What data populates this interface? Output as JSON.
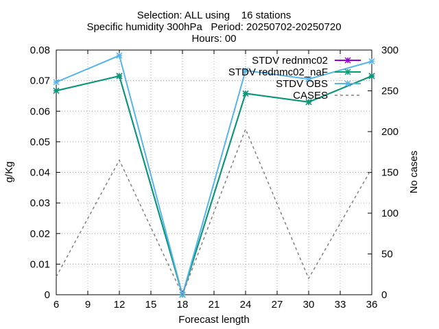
{
  "chart_data": {
    "type": "line",
    "title_lines": [
      "Selection: ALL using    16 stations",
      "Specific humidity 300hPa   Period: 20250702-20250720",
      "Hours: 00"
    ],
    "xlabel": "Forecast length",
    "ylabel": "g/Kg",
    "y2label": "No cases",
    "x": [
      6,
      12,
      18,
      24,
      30,
      36
    ],
    "xticks": [
      "6",
      "9",
      "12",
      "15",
      "18",
      "21",
      "24",
      "27",
      "30",
      "33",
      "36"
    ],
    "xtick_values": [
      6,
      9,
      12,
      15,
      18,
      21,
      24,
      27,
      30,
      33,
      36
    ],
    "xlim": [
      6,
      36
    ],
    "ylim": [
      0,
      0.08
    ],
    "yticks": [
      "0",
      "0.01",
      "0.02",
      "0.03",
      "0.04",
      "0.05",
      "0.06",
      "0.07",
      "0.08"
    ],
    "ytick_values": [
      0,
      0.01,
      0.02,
      0.03,
      0.04,
      0.05,
      0.06,
      0.07,
      0.08
    ],
    "y2lim": [
      0,
      300
    ],
    "y2ticks": [
      "0",
      "50",
      "100",
      "150",
      "200",
      "250",
      "300"
    ],
    "y2tick_values": [
      0,
      50,
      100,
      150,
      200,
      250,
      300
    ],
    "grid": true,
    "legend_position": "top-right",
    "series": [
      {
        "name": "STDV rednmc02",
        "color": "#9400d3",
        "style": "solid-star",
        "axis": "y1",
        "values": [
          0.0667,
          0.0715,
          0.0,
          0.0658,
          0.063,
          0.0715
        ]
      },
      {
        "name": "STDV rednmc02_naF",
        "color": "#009e73",
        "style": "solid-star",
        "axis": "y1",
        "values": [
          0.0667,
          0.0715,
          0.0,
          0.0658,
          0.063,
          0.0715
        ]
      },
      {
        "name": "STDV OBS",
        "color": "#56b4e9",
        "style": "solid-star",
        "axis": "y1",
        "values": [
          0.0695,
          0.0782,
          0.0,
          0.0733,
          0.0705,
          0.0763
        ]
      },
      {
        "name": "CASES",
        "color": "#808080",
        "style": "dashed",
        "axis": "y2",
        "values": [
          22,
          165,
          0,
          203,
          20,
          155
        ]
      }
    ]
  }
}
